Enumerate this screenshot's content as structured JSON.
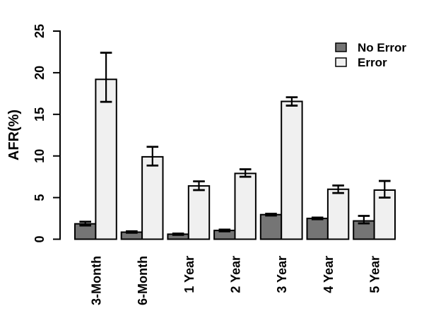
{
  "chart_data": {
    "type": "bar",
    "title": "",
    "xlabel": "",
    "ylabel": "AFR(%)",
    "ylim": [
      0,
      25
    ],
    "yticks": [
      0,
      5,
      10,
      15,
      20,
      25
    ],
    "grid": false,
    "legend_position": "top-right",
    "categories": [
      "3-Month",
      "6-Month",
      "1 Year",
      "2 Year",
      "3 Year",
      "4 Year",
      "5 Year"
    ],
    "series": [
      {
        "name": "No Error",
        "color": "#757575",
        "values": [
          1.85,
          0.85,
          0.6,
          1.05,
          2.95,
          2.5,
          2.2
        ],
        "error_low": [
          1.65,
          0.78,
          0.52,
          0.95,
          2.85,
          2.4,
          1.9
        ],
        "error_high": [
          2.1,
          0.95,
          0.68,
          1.15,
          3.05,
          2.6,
          2.8
        ]
      },
      {
        "name": "Error",
        "color": "#f0f0f0",
        "values": [
          19.2,
          9.9,
          6.4,
          7.9,
          16.55,
          6.0,
          5.9
        ],
        "error_low": [
          16.5,
          8.85,
          5.9,
          7.5,
          16.05,
          5.55,
          5.0
        ],
        "error_high": [
          22.4,
          11.1,
          6.95,
          8.4,
          17.05,
          6.45,
          7.0
        ]
      }
    ],
    "axis_color": "#000000",
    "bar_border_color": "#000000",
    "errorbar_color": "#000000"
  }
}
